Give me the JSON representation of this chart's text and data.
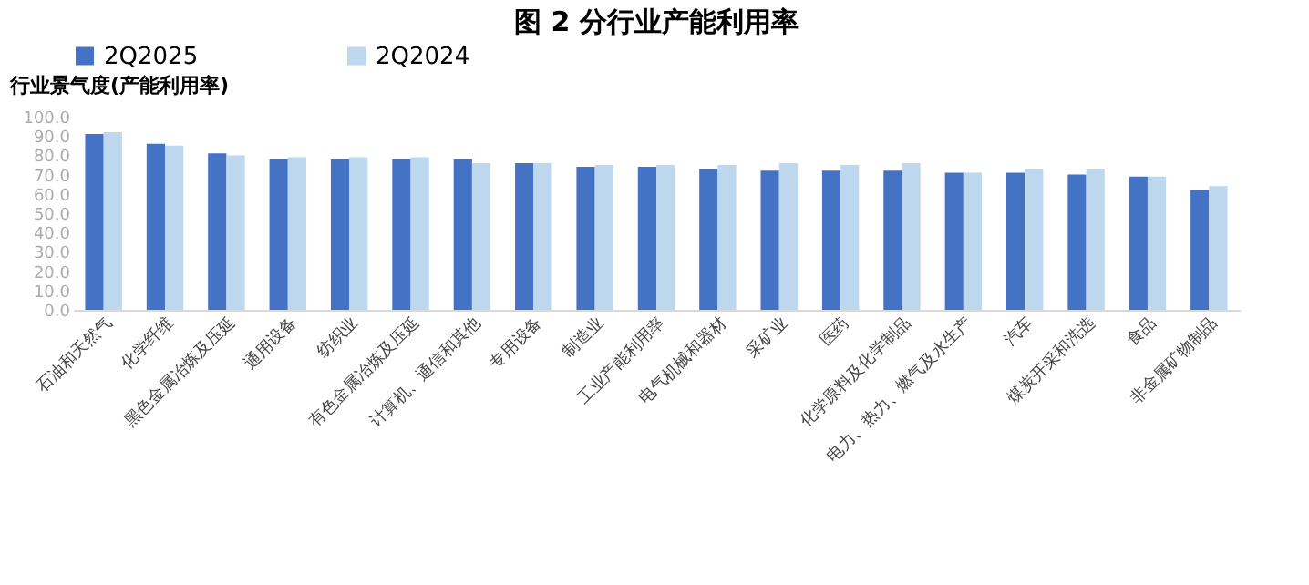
{
  "chart_data": {
    "type": "bar",
    "title": "图 2 分行业产能利用率",
    "ylabel": "行业景气度(产能利用率)",
    "categories": [
      "石油和天然气",
      "化学纤维",
      "黑色金属冶炼及压延",
      "通用设备",
      "纺织业",
      "有色金属冶炼及压延",
      "计算机、通信和其他",
      "专用设备",
      "制造业",
      "工业产能利用率",
      "电气机械和器材",
      "采矿业",
      "医药",
      "化学原料及化学制品",
      "电力、热力、燃气及水生产",
      "汽车",
      "煤炭开采和洗选",
      "食品",
      "非金属矿物制品"
    ],
    "series": [
      {
        "name": "2Q2025",
        "color": "#4472c4",
        "values": [
          91,
          86,
          81,
          78,
          78,
          78,
          78,
          76,
          74,
          74,
          73,
          72,
          72,
          72,
          71,
          71,
          70,
          69,
          62
        ]
      },
      {
        "name": "2Q2024",
        "color": "#bdd7ee",
        "values": [
          92,
          85,
          80,
          79,
          79,
          79,
          76,
          76,
          75,
          75,
          75,
          76,
          75,
          76,
          71,
          73,
          73,
          69,
          64
        ]
      }
    ],
    "ylim": [
      0,
      100
    ],
    "yticks": [
      {
        "value": 0,
        "label": "0.0"
      },
      {
        "value": 10,
        "label": "10.0"
      },
      {
        "value": 20,
        "label": "20.0"
      },
      {
        "value": 30,
        "label": "30.0"
      },
      {
        "value": 40,
        "label": "40.0"
      },
      {
        "value": 50,
        "label": "50.0"
      },
      {
        "value": 60,
        "label": "60.0"
      },
      {
        "value": 70,
        "label": "70.0"
      },
      {
        "value": 80,
        "label": "80.0"
      },
      {
        "value": 90,
        "label": "90.0"
      },
      {
        "value": 100,
        "label": "100.0"
      }
    ],
    "grid": false,
    "legend": "top"
  }
}
